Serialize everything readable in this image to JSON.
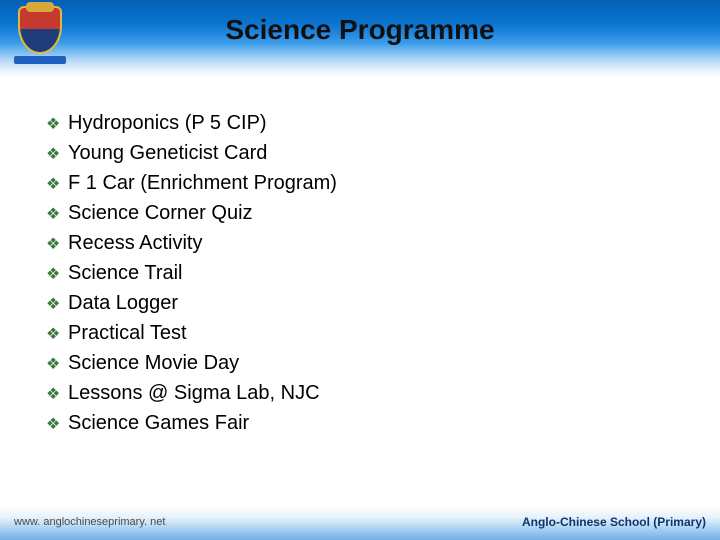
{
  "header": {
    "title": "Science Programme",
    "title_color": "#111111",
    "title_fontsize": 28,
    "band_gradient_top": "#045fb4",
    "band_gradient_bottom": "#ffffff"
  },
  "crest": {
    "shield_top_color": "#c43a2e",
    "shield_bottom_color": "#1f3d7a",
    "shield_border_color": "#e0b83e",
    "ribbon_color": "#1f5fbf"
  },
  "list": {
    "bullet_glyph": "❖",
    "bullet_color": "#3b7a3b",
    "text_color": "#000000",
    "text_fontsize": 20,
    "items": [
      "Hydroponics (P 5 CIP)",
      "Young Geneticist Card",
      "F 1 Car (Enrichment Program)",
      "Science Corner Quiz",
      "Recess Activity",
      "Science Trail",
      "Data Logger",
      "Practical Test",
      "Science Movie Day",
      "Lessons @ Sigma Lab, NJC",
      "Science Games Fair"
    ]
  },
  "footer": {
    "left_text": "www. anglochineseprimary. net",
    "right_text": "Anglo-Chinese School (Primary)",
    "left_color": "#4a4a4a",
    "right_color": "#10356e",
    "gradient_top": "#ffffff",
    "gradient_bottom": "#6eb0e6"
  }
}
